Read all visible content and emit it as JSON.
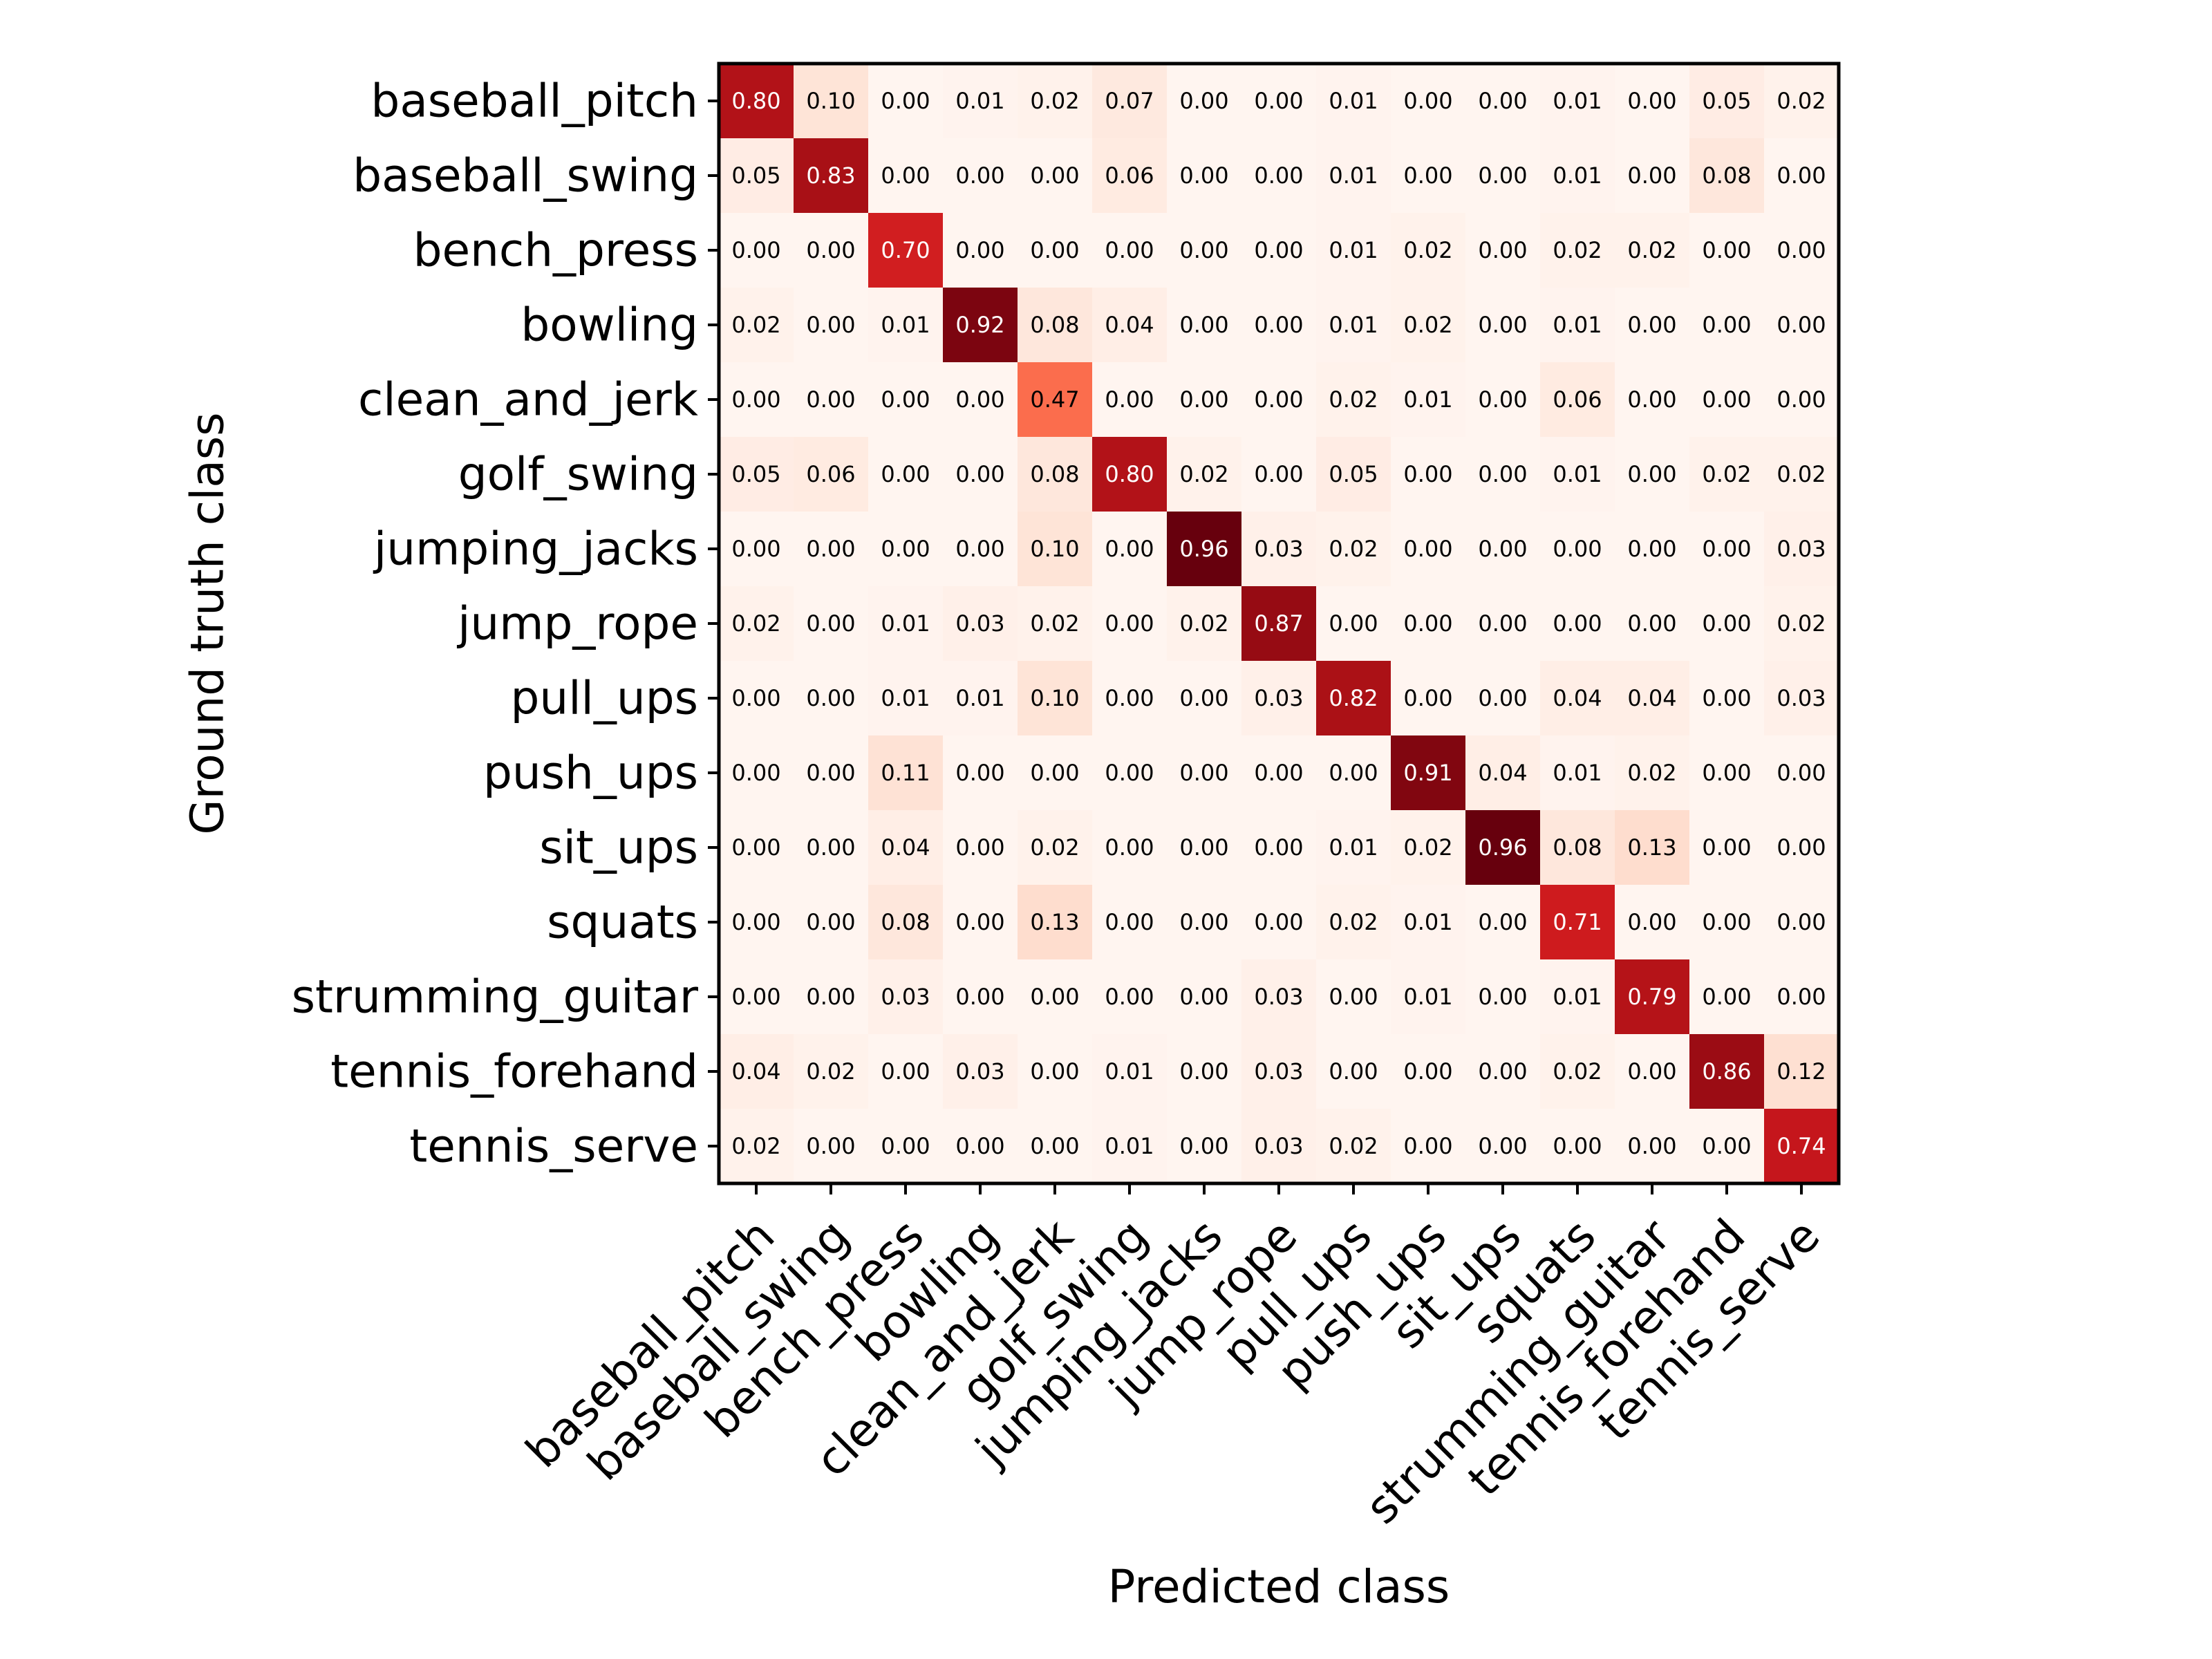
{
  "chart_data": {
    "type": "heatmap",
    "title": "",
    "xlabel": "Predicted class",
    "ylabel": "Ground truth class",
    "colormap": "Reds",
    "value_range": [
      0,
      1
    ],
    "grid": false,
    "legend": "none",
    "categories": [
      "baseball_pitch",
      "baseball_swing",
      "bench_press",
      "bowling",
      "clean_and_jerk",
      "golf_swing",
      "jumping_jacks",
      "jump_rope",
      "pull_ups",
      "push_ups",
      "sit_ups",
      "squats",
      "strumming_guitar",
      "tennis_forehand",
      "tennis_serve"
    ],
    "matrix": [
      [
        0.8,
        0.1,
        0.0,
        0.01,
        0.02,
        0.07,
        0.0,
        0.0,
        0.01,
        0.0,
        0.0,
        0.01,
        0.0,
        0.05,
        0.02
      ],
      [
        0.05,
        0.83,
        0.0,
        0.0,
        0.0,
        0.06,
        0.0,
        0.0,
        0.01,
        0.0,
        0.0,
        0.01,
        0.0,
        0.08,
        0.0
      ],
      [
        0.0,
        0.0,
        0.7,
        0.0,
        0.0,
        0.0,
        0.0,
        0.0,
        0.01,
        0.02,
        0.0,
        0.02,
        0.02,
        0.0,
        0.0
      ],
      [
        0.02,
        0.0,
        0.01,
        0.92,
        0.08,
        0.04,
        0.0,
        0.0,
        0.01,
        0.02,
        0.0,
        0.01,
        0.0,
        0.0,
        0.0
      ],
      [
        0.0,
        0.0,
        0.0,
        0.0,
        0.47,
        0.0,
        0.0,
        0.0,
        0.02,
        0.01,
        0.0,
        0.06,
        0.0,
        0.0,
        0.0
      ],
      [
        0.05,
        0.06,
        0.0,
        0.0,
        0.08,
        0.8,
        0.02,
        0.0,
        0.05,
        0.0,
        0.0,
        0.01,
        0.0,
        0.02,
        0.02
      ],
      [
        0.0,
        0.0,
        0.0,
        0.0,
        0.1,
        0.0,
        0.96,
        0.03,
        0.02,
        0.0,
        0.0,
        0.0,
        0.0,
        0.0,
        0.03
      ],
      [
        0.02,
        0.0,
        0.01,
        0.03,
        0.02,
        0.0,
        0.02,
        0.87,
        0.0,
        0.0,
        0.0,
        0.0,
        0.0,
        0.0,
        0.02
      ],
      [
        0.0,
        0.0,
        0.01,
        0.01,
        0.1,
        0.0,
        0.0,
        0.03,
        0.82,
        0.0,
        0.0,
        0.04,
        0.04,
        0.0,
        0.03
      ],
      [
        0.0,
        0.0,
        0.11,
        0.0,
        0.0,
        0.0,
        0.0,
        0.0,
        0.0,
        0.91,
        0.04,
        0.01,
        0.02,
        0.0,
        0.0
      ],
      [
        0.0,
        0.0,
        0.04,
        0.0,
        0.02,
        0.0,
        0.0,
        0.0,
        0.01,
        0.02,
        0.96,
        0.08,
        0.13,
        0.0,
        0.0
      ],
      [
        0.0,
        0.0,
        0.08,
        0.0,
        0.13,
        0.0,
        0.0,
        0.0,
        0.02,
        0.01,
        0.0,
        0.71,
        0.0,
        0.0,
        0.0
      ],
      [
        0.0,
        0.0,
        0.03,
        0.0,
        0.0,
        0.0,
        0.0,
        0.03,
        0.0,
        0.01,
        0.0,
        0.01,
        0.79,
        0.0,
        0.0
      ],
      [
        0.04,
        0.02,
        0.0,
        0.03,
        0.0,
        0.01,
        0.0,
        0.03,
        0.0,
        0.0,
        0.0,
        0.02,
        0.0,
        0.86,
        0.12
      ],
      [
        0.02,
        0.0,
        0.0,
        0.0,
        0.0,
        0.01,
        0.0,
        0.03,
        0.02,
        0.0,
        0.0,
        0.0,
        0.0,
        0.0,
        0.74
      ]
    ]
  }
}
